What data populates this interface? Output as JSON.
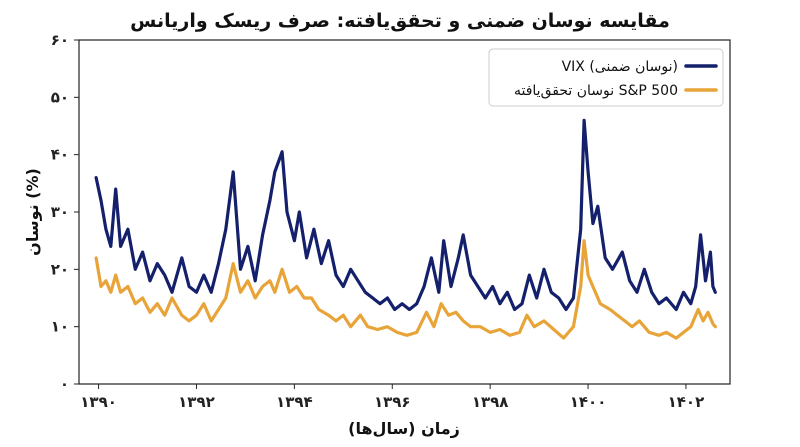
{
  "chart_data": {
    "type": "line",
    "title": "مقایسه نوسان ضمنی و تحقق‌یافته: صرف ریسک واریانس",
    "xlabel": "زمان (سال‌ها)",
    "ylabel": "نوسان (%)",
    "xlim": [
      1389.6,
      1402.9
    ],
    "ylim": [
      0,
      60
    ],
    "x_ticks": [
      1390,
      1392,
      1394,
      1396,
      1398,
      1400,
      1402
    ],
    "x_tick_labels": [
      "۱۳۹۰",
      "۱۳۹۲",
      "۱۳۹۴",
      "۱۳۹۶",
      "۱۳۹۸",
      "۱۴۰۰",
      "۱۴۰۲"
    ],
    "y_ticks": [
      0,
      10,
      20,
      30,
      40,
      50,
      60
    ],
    "y_tick_labels": [
      "۰",
      "۱۰",
      "۲۰",
      "۳۰",
      "۴۰",
      "۵۰",
      "۶۰"
    ],
    "grid": false,
    "legend_position": "top-right",
    "series": [
      {
        "name": "VIX (نوسان ضمنی)",
        "color": "#14206b",
        "points": [
          [
            1389.95,
            36
          ],
          [
            1390.05,
            32
          ],
          [
            1390.15,
            27
          ],
          [
            1390.25,
            24
          ],
          [
            1390.35,
            34
          ],
          [
            1390.45,
            24
          ],
          [
            1390.6,
            27
          ],
          [
            1390.75,
            20
          ],
          [
            1390.9,
            23
          ],
          [
            1391.05,
            18
          ],
          [
            1391.2,
            21
          ],
          [
            1391.35,
            19
          ],
          [
            1391.5,
            16
          ],
          [
            1391.7,
            22
          ],
          [
            1391.85,
            17
          ],
          [
            1392.0,
            16
          ],
          [
            1392.15,
            19
          ],
          [
            1392.3,
            16
          ],
          [
            1392.45,
            21
          ],
          [
            1392.6,
            27
          ],
          [
            1392.75,
            37
          ],
          [
            1392.9,
            20
          ],
          [
            1393.05,
            24
          ],
          [
            1393.2,
            18
          ],
          [
            1393.35,
            26
          ],
          [
            1393.5,
            32
          ],
          [
            1393.6,
            37
          ],
          [
            1393.75,
            40.5
          ],
          [
            1393.85,
            30
          ],
          [
            1394.0,
            25
          ],
          [
            1394.1,
            30
          ],
          [
            1394.25,
            22
          ],
          [
            1394.4,
            27
          ],
          [
            1394.55,
            21
          ],
          [
            1394.7,
            25
          ],
          [
            1394.85,
            19
          ],
          [
            1395.0,
            17
          ],
          [
            1395.15,
            20
          ],
          [
            1395.3,
            18
          ],
          [
            1395.45,
            16
          ],
          [
            1395.6,
            15
          ],
          [
            1395.75,
            14
          ],
          [
            1395.9,
            15
          ],
          [
            1396.05,
            13
          ],
          [
            1396.2,
            14
          ],
          [
            1396.35,
            13
          ],
          [
            1396.5,
            14
          ],
          [
            1396.65,
            17
          ],
          [
            1396.8,
            22
          ],
          [
            1396.95,
            16
          ],
          [
            1397.05,
            25
          ],
          [
            1397.2,
            17
          ],
          [
            1397.35,
            22
          ],
          [
            1397.45,
            26
          ],
          [
            1397.6,
            19
          ],
          [
            1397.75,
            17
          ],
          [
            1397.9,
            15
          ],
          [
            1398.05,
            17
          ],
          [
            1398.2,
            14
          ],
          [
            1398.35,
            16
          ],
          [
            1398.5,
            13
          ],
          [
            1398.65,
            14
          ],
          [
            1398.8,
            19
          ],
          [
            1398.95,
            15
          ],
          [
            1399.1,
            20
          ],
          [
            1399.25,
            16
          ],
          [
            1399.4,
            15
          ],
          [
            1399.55,
            13
          ],
          [
            1399.7,
            15
          ],
          [
            1399.85,
            27
          ],
          [
            1399.92,
            46
          ],
          [
            1400.0,
            37
          ],
          [
            1400.1,
            28
          ],
          [
            1400.2,
            31
          ],
          [
            1400.35,
            22
          ],
          [
            1400.5,
            20
          ],
          [
            1400.7,
            23
          ],
          [
            1400.85,
            18
          ],
          [
            1401.0,
            16
          ],
          [
            1401.15,
            20
          ],
          [
            1401.3,
            16
          ],
          [
            1401.45,
            14
          ],
          [
            1401.6,
            15
          ],
          [
            1401.8,
            13
          ],
          [
            1401.95,
            16
          ],
          [
            1402.1,
            14
          ],
          [
            1402.2,
            17
          ],
          [
            1402.3,
            26
          ],
          [
            1402.4,
            18
          ],
          [
            1402.5,
            23
          ],
          [
            1402.55,
            17
          ],
          [
            1402.6,
            16
          ]
        ]
      },
      {
        "name": "نوسان تحقق‌یافته S&P 500",
        "color": "#e8a438",
        "points": [
          [
            1389.95,
            22
          ],
          [
            1390.05,
            17
          ],
          [
            1390.15,
            18
          ],
          [
            1390.25,
            16
          ],
          [
            1390.35,
            19
          ],
          [
            1390.45,
            16
          ],
          [
            1390.6,
            17
          ],
          [
            1390.75,
            14
          ],
          [
            1390.9,
            15
          ],
          [
            1391.05,
            12.5
          ],
          [
            1391.2,
            14
          ],
          [
            1391.35,
            12
          ],
          [
            1391.5,
            15
          ],
          [
            1391.7,
            12
          ],
          [
            1391.85,
            11
          ],
          [
            1392.0,
            12
          ],
          [
            1392.15,
            14
          ],
          [
            1392.3,
            11
          ],
          [
            1392.45,
            13
          ],
          [
            1392.6,
            15
          ],
          [
            1392.75,
            21
          ],
          [
            1392.9,
            16
          ],
          [
            1393.05,
            18
          ],
          [
            1393.2,
            15
          ],
          [
            1393.35,
            17
          ],
          [
            1393.5,
            18
          ],
          [
            1393.6,
            16
          ],
          [
            1393.75,
            20
          ],
          [
            1393.9,
            16
          ],
          [
            1394.05,
            17
          ],
          [
            1394.2,
            15
          ],
          [
            1394.35,
            15
          ],
          [
            1394.5,
            13
          ],
          [
            1394.7,
            12
          ],
          [
            1394.85,
            11
          ],
          [
            1395.0,
            12
          ],
          [
            1395.15,
            10
          ],
          [
            1395.35,
            12
          ],
          [
            1395.5,
            10
          ],
          [
            1395.7,
            9.5
          ],
          [
            1395.9,
            10
          ],
          [
            1396.1,
            9
          ],
          [
            1396.3,
            8.5
          ],
          [
            1396.5,
            9
          ],
          [
            1396.7,
            12.5
          ],
          [
            1396.85,
            10
          ],
          [
            1397.0,
            14
          ],
          [
            1397.15,
            12
          ],
          [
            1397.3,
            12.5
          ],
          [
            1397.45,
            11
          ],
          [
            1397.6,
            10
          ],
          [
            1397.8,
            10
          ],
          [
            1398.0,
            9
          ],
          [
            1398.2,
            9.5
          ],
          [
            1398.4,
            8.5
          ],
          [
            1398.6,
            9
          ],
          [
            1398.75,
            12
          ],
          [
            1398.9,
            10
          ],
          [
            1399.1,
            11
          ],
          [
            1399.3,
            9.5
          ],
          [
            1399.5,
            8
          ],
          [
            1399.7,
            10
          ],
          [
            1399.85,
            17
          ],
          [
            1399.92,
            25
          ],
          [
            1400.0,
            19
          ],
          [
            1400.1,
            17
          ],
          [
            1400.25,
            14
          ],
          [
            1400.45,
            13
          ],
          [
            1400.6,
            12
          ],
          [
            1400.75,
            11
          ],
          [
            1400.9,
            10
          ],
          [
            1401.05,
            11
          ],
          [
            1401.25,
            9
          ],
          [
            1401.45,
            8.5
          ],
          [
            1401.6,
            9
          ],
          [
            1401.8,
            8
          ],
          [
            1401.95,
            9
          ],
          [
            1402.1,
            10
          ],
          [
            1402.25,
            13
          ],
          [
            1402.35,
            11
          ],
          [
            1402.45,
            12.5
          ],
          [
            1402.55,
            10.5
          ],
          [
            1402.6,
            10
          ]
        ]
      }
    ]
  }
}
